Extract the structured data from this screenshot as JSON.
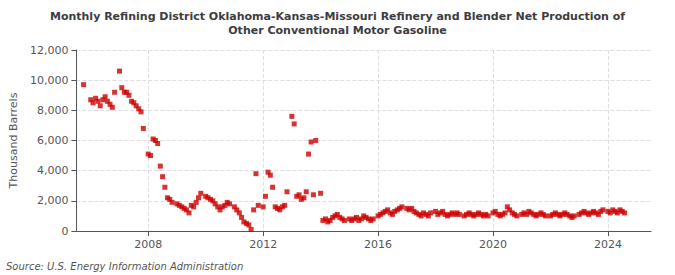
{
  "chart_data": {
    "type": "scatter",
    "title": "Monthly Refining District Oklahoma-Kansas-Missouri Refinery and Blender Net Production of\nOther Conventional Motor Gasoline",
    "ylabel": "Thousand Barrels",
    "annotations": [
      "Source: U.S. Energy Information Administration"
    ],
    "color": "#cc0000",
    "marker": "square",
    "grid": true,
    "xlim": [
      2005.5,
      2025.5
    ],
    "xticks": [
      2008,
      2012,
      2016,
      2020,
      2024
    ],
    "ylim": [
      0,
      12000
    ],
    "yticks": [
      0,
      {
        "value": 2000,
        "label": "2,000"
      },
      {
        "value": 4000,
        "label": "4,000"
      },
      {
        "value": 6000,
        "label": "6,000"
      },
      {
        "value": 8000,
        "label": "8,000"
      },
      {
        "value": 10000,
        "label": "10,000"
      },
      {
        "value": 12000,
        "label": "12,000"
      }
    ],
    "x": [
      2005.75,
      2006.0,
      2006.08,
      2006.17,
      2006.25,
      2006.33,
      2006.42,
      2006.5,
      2006.58,
      2006.67,
      2006.75,
      2006.83,
      2007.0,
      2007.08,
      2007.17,
      2007.25,
      2007.33,
      2007.42,
      2007.5,
      2007.58,
      2007.67,
      2007.75,
      2007.83,
      2008.0,
      2008.08,
      2008.17,
      2008.25,
      2008.33,
      2008.42,
      2008.5,
      2008.58,
      2008.67,
      2008.75,
      2008.83,
      2009.0,
      2009.08,
      2009.17,
      2009.25,
      2009.33,
      2009.42,
      2009.5,
      2009.58,
      2009.67,
      2009.75,
      2009.83,
      2010.0,
      2010.08,
      2010.17,
      2010.25,
      2010.33,
      2010.42,
      2010.5,
      2010.58,
      2010.67,
      2010.75,
      2010.83,
      2011.0,
      2011.08,
      2011.17,
      2011.25,
      2011.33,
      2011.42,
      2011.5,
      2011.58,
      2011.67,
      2011.75,
      2011.83,
      2012.0,
      2012.08,
      2012.17,
      2012.25,
      2012.33,
      2012.42,
      2012.5,
      2012.58,
      2012.67,
      2012.75,
      2012.83,
      2013.0,
      2013.08,
      2013.17,
      2013.25,
      2013.33,
      2013.42,
      2013.5,
      2013.58,
      2013.67,
      2013.75,
      2013.83,
      2014.0,
      2014.08,
      2014.17,
      2014.25,
      2014.33,
      2014.42,
      2014.5,
      2014.58,
      2014.67,
      2014.75,
      2014.83,
      2015.0,
      2015.08,
      2015.17,
      2015.25,
      2015.33,
      2015.42,
      2015.5,
      2015.58,
      2015.67,
      2015.75,
      2015.83,
      2016.0,
      2016.08,
      2016.17,
      2016.25,
      2016.33,
      2016.42,
      2016.5,
      2016.58,
      2016.67,
      2016.75,
      2016.83,
      2017.0,
      2017.08,
      2017.17,
      2017.25,
      2017.33,
      2017.42,
      2017.5,
      2017.58,
      2017.67,
      2017.75,
      2017.83,
      2018.0,
      2018.08,
      2018.17,
      2018.25,
      2018.33,
      2018.42,
      2018.5,
      2018.58,
      2018.67,
      2018.75,
      2018.83,
      2019.0,
      2019.08,
      2019.17,
      2019.25,
      2019.33,
      2019.42,
      2019.5,
      2019.58,
      2019.67,
      2019.75,
      2019.83,
      2020.0,
      2020.08,
      2020.17,
      2020.25,
      2020.33,
      2020.42,
      2020.5,
      2020.58,
      2020.67,
      2020.75,
      2020.83,
      2021.0,
      2021.08,
      2021.17,
      2021.25,
      2021.33,
      2021.42,
      2021.5,
      2021.58,
      2021.67,
      2021.75,
      2021.83,
      2022.0,
      2022.08,
      2022.17,
      2022.25,
      2022.33,
      2022.42,
      2022.5,
      2022.58,
      2022.67,
      2022.75,
      2022.83,
      2023.0,
      2023.08,
      2023.17,
      2023.25,
      2023.33,
      2023.42,
      2023.5,
      2023.58,
      2023.67,
      2023.75,
      2023.83,
      2024.0,
      2024.08,
      2024.17,
      2024.25,
      2024.33,
      2024.42,
      2024.5,
      2024.58
    ],
    "values": [
      9700,
      8700,
      8500,
      8800,
      8600,
      8300,
      8700,
      8900,
      8600,
      8400,
      8200,
      9200,
      10600,
      9500,
      9200,
      9200,
      9000,
      8600,
      8500,
      8300,
      8100,
      7900,
      6800,
      5100,
      5000,
      6100,
      6000,
      5800,
      4300,
      3600,
      2900,
      2200,
      2100,
      1900,
      1800,
      1700,
      1600,
      1500,
      1400,
      1200,
      1700,
      1600,
      1900,
      2200,
      2500,
      2300,
      2200,
      2100,
      2000,
      1800,
      1600,
      1400,
      1600,
      1700,
      1900,
      1800,
      1600,
      1400,
      1200,
      900,
      600,
      500,
      400,
      100,
      1400,
      3800,
      1700,
      1600,
      2300,
      3900,
      3700,
      2900,
      1600,
      1500,
      1400,
      1600,
      1700,
      2600,
      7600,
      7100,
      2300,
      2400,
      2100,
      2200,
      2600,
      5100,
      5900,
      2400,
      6000,
      2500,
      700,
      800,
      600,
      700,
      900,
      1000,
      1100,
      900,
      800,
      700,
      800,
      700,
      800,
      900,
      700,
      800,
      1000,
      900,
      800,
      700,
      800,
      1000,
      1100,
      1200,
      1300,
      1400,
      1200,
      1100,
      1300,
      1400,
      1500,
      1600,
      1500,
      1400,
      1500,
      1300,
      1200,
      1100,
      1000,
      1200,
      1100,
      1000,
      1200,
      1300,
      1100,
      1200,
      1300,
      1100,
      1000,
      1100,
      1200,
      1100,
      1200,
      1100,
      1000,
      1100,
      1200,
      1100,
      1000,
      1100,
      1200,
      1100,
      1000,
      1100,
      1000,
      1200,
      1300,
      1100,
      1000,
      1100,
      1200,
      1600,
      1400,
      1200,
      1100,
      1000,
      1100,
      1200,
      1100,
      1300,
      1200,
      1100,
      1000,
      1100,
      1200,
      1100,
      1000,
      1000,
      1100,
      1200,
      1100,
      1000,
      1100,
      1200,
      1100,
      1000,
      900,
      1000,
      1100,
      1200,
      1300,
      1200,
      1100,
      1200,
      1300,
      1200,
      1100,
      1300,
      1400,
      1300,
      1200,
      1400,
      1300,
      1200,
      1400,
      1300,
      1200
    ]
  }
}
